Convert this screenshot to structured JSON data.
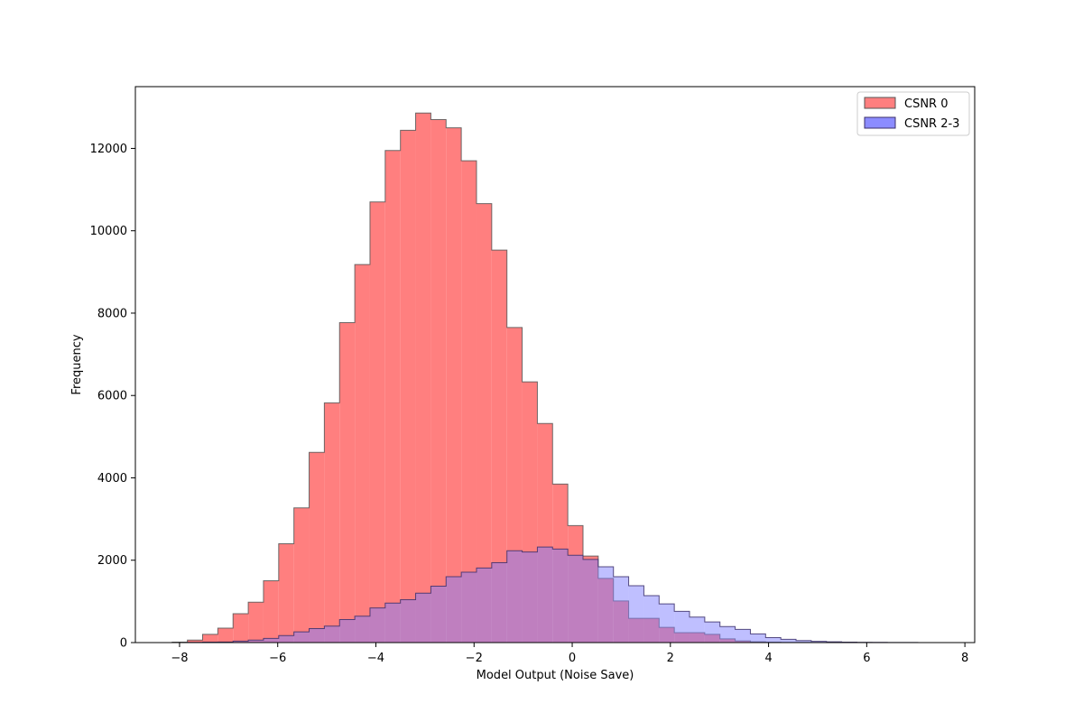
{
  "chart_data": {
    "type": "histogram",
    "title": "",
    "xlabel": "Model Output (Noise Save)",
    "ylabel": "Frequency",
    "xlim": [
      -8.9,
      8.2
    ],
    "ylim": [
      0,
      13500
    ],
    "xticks": [
      -8,
      -6,
      -4,
      -2,
      0,
      2,
      4,
      6,
      8
    ],
    "yticks": [
      0,
      2000,
      4000,
      6000,
      8000,
      10000,
      12000
    ],
    "xtick_labels": [
      "−8",
      "−6",
      "−4",
      "−2",
      "0",
      "2",
      "4",
      "6",
      "8"
    ],
    "ytick_labels": [
      "0",
      "2000",
      "4000",
      "6000",
      "8000",
      "10000",
      "12000"
    ],
    "grid": false,
    "legend_position": "top-right",
    "series": [
      {
        "name": "CSNR 0",
        "color": "#ff7f7f",
        "edge_color": "#555555",
        "bin_start": -8.15,
        "bin_width": 0.31,
        "values": [
          10,
          60,
          200,
          350,
          700,
          980,
          1500,
          2400,
          3270,
          4620,
          5820,
          7770,
          9180,
          10700,
          11950,
          12440,
          12860,
          12700,
          12500,
          11700,
          10660,
          9530,
          7650,
          6330,
          5320,
          3850,
          2840,
          2100,
          1560,
          1010,
          590,
          590,
          370,
          240,
          240,
          200,
          90,
          40,
          20,
          10,
          5,
          5,
          3,
          3,
          2,
          2,
          1,
          1,
          1,
          1,
          1
        ]
      },
      {
        "name": "CSNR 2-3",
        "color": "#8080ff",
        "edge_color": "#3b2f6b",
        "bin_start": -8.15,
        "bin_width": 0.31,
        "values": [
          0,
          5,
          10,
          15,
          35,
          60,
          100,
          170,
          260,
          340,
          400,
          560,
          640,
          840,
          960,
          1040,
          1200,
          1370,
          1600,
          1710,
          1810,
          1940,
          2230,
          2200,
          2320,
          2270,
          2120,
          2020,
          1840,
          1600,
          1380,
          1140,
          940,
          760,
          620,
          500,
          390,
          320,
          210,
          120,
          80,
          50,
          30,
          20,
          10,
          5,
          5,
          3,
          2,
          1,
          1
        ]
      }
    ]
  }
}
